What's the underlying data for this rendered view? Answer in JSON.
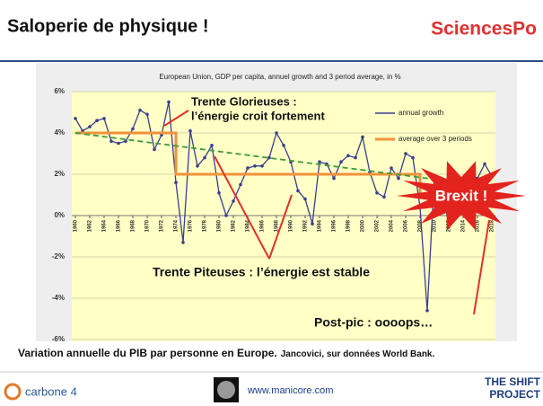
{
  "header": {
    "title": "Saloperie de physique !",
    "logo": "SciencesPo"
  },
  "caption": {
    "main": "Variation annuelle du PIB par personne en Europe.",
    "source": "Jancovici, sur données World Bank."
  },
  "footer": {
    "brand": "carbone 4",
    "url": "www.manicore.com",
    "partner_line1": "THE SHIFT",
    "partner_line2": "PROJECT"
  },
  "chart_data": {
    "type": "line",
    "title": "European Union, GDP per capita, annuel growth and 3 period average, in %",
    "x": [
      1960,
      1961,
      1962,
      1963,
      1964,
      1965,
      1966,
      1967,
      1968,
      1969,
      1970,
      1971,
      1972,
      1973,
      1974,
      1975,
      1976,
      1977,
      1978,
      1979,
      1980,
      1981,
      1982,
      1983,
      1984,
      1985,
      1986,
      1987,
      1988,
      1989,
      1990,
      1991,
      1992,
      1993,
      1994,
      1995,
      1996,
      1997,
      1998,
      1999,
      2000,
      2001,
      2002,
      2003,
      2004,
      2005,
      2006,
      2007,
      2008,
      2009,
      2010,
      2011,
      2012,
      2013,
      2014,
      2015,
      2016,
      2017,
      2018
    ],
    "series": [
      {
        "name": "annual growth",
        "color": "#3a3f8f",
        "markers": true,
        "values": [
          4.7,
          4.1,
          4.3,
          4.6,
          4.7,
          3.6,
          3.5,
          3.6,
          4.2,
          5.1,
          4.9,
          3.2,
          3.9,
          5.5,
          1.6,
          -1.3,
          4.1,
          2.4,
          2.8,
          3.4,
          1.1,
          0.0,
          0.7,
          1.5,
          2.3,
          2.4,
          2.4,
          2.8,
          4.0,
          3.4,
          2.6,
          1.2,
          0.8,
          -0.4,
          2.6,
          2.5,
          1.8,
          2.6,
          2.9,
          2.8,
          3.8,
          2.1,
          1.1,
          0.9,
          2.3,
          1.8,
          3.0,
          2.8,
          0.4,
          -4.6,
          1.9,
          1.6,
          -0.5,
          0.1,
          1.4,
          2.0,
          1.8,
          2.5,
          1.9
        ]
      },
      {
        "name": "average over 3 periods",
        "color": "#f0923a",
        "markers": false,
        "x": [
          1960,
          1974,
          1974,
          2008,
          2008,
          2018
        ],
        "values": [
          4.0,
          4.0,
          2.0,
          2.0,
          0.9,
          0.9
        ]
      }
    ],
    "trend": {
      "color": "#3c9a3c",
      "dashed": true,
      "x": [
        1960,
        2018
      ],
      "values": [
        4.0,
        1.4
      ]
    },
    "xlim": [
      1959.5,
      2018.5
    ],
    "xticks": [
      1960,
      1962,
      1964,
      1966,
      1968,
      1970,
      1972,
      1974,
      1976,
      1978,
      1980,
      1982,
      1984,
      1986,
      1988,
      1990,
      1992,
      1994,
      1996,
      1998,
      2000,
      2002,
      2004,
      2006,
      2008,
      2010,
      2012,
      2014,
      2016,
      2018
    ],
    "ylim": [
      -6,
      6
    ],
    "yticks": [
      {
        "value": -6,
        "label": "-6%"
      },
      {
        "value": -4,
        "label": "-4%"
      },
      {
        "value": -2,
        "label": "-2%"
      },
      {
        "value": 0,
        "label": "0%"
      },
      {
        "value": 2,
        "label": "2%"
      },
      {
        "value": 4,
        "label": "4%"
      },
      {
        "value": 6,
        "label": "6%"
      }
    ],
    "grid": true,
    "annotations": [
      {
        "lines": [
          "Trente Glorieuses :",
          "l’énergie croit fortement"
        ]
      },
      {
        "lines": [
          "Trente Piteuses : l’énergie est stable"
        ]
      },
      {
        "lines": [
          "Post-pic : oooops…"
        ]
      },
      {
        "lines": [
          "Brexit !"
        ]
      }
    ]
  }
}
